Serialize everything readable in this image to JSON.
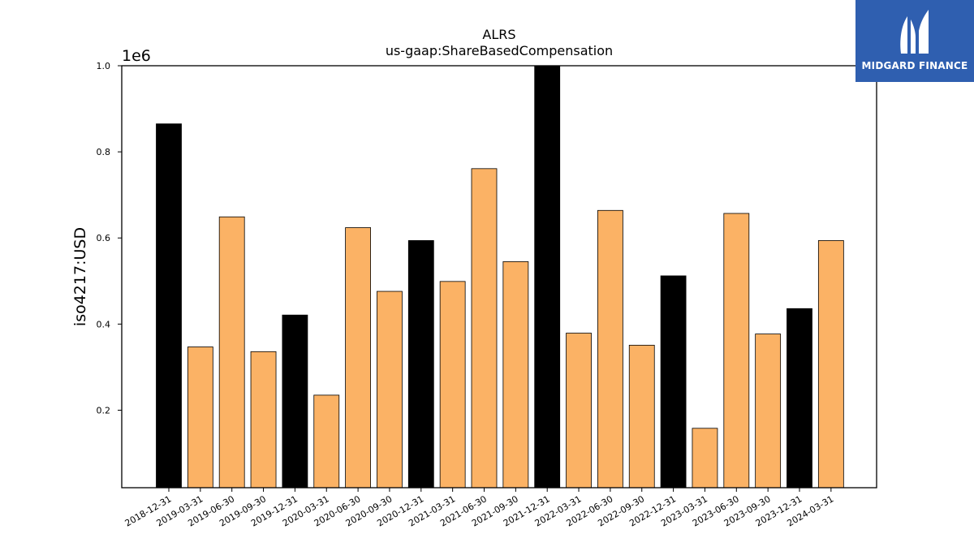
{
  "chart_data": {
    "type": "bar",
    "title": "ALRS",
    "subtitle": "us-gaap:ShareBasedCompensation",
    "xlabel": "",
    "ylabel": "iso4217:USD",
    "y_scale_label": "1e6",
    "ylim": [
      0.02,
      1.0
    ],
    "yticks": [
      0.2,
      0.4,
      0.6,
      0.8,
      1.0
    ],
    "ytick_labels": [
      "0.2",
      "0.4",
      "0.6",
      "0.8",
      "1.0"
    ],
    "grid": false,
    "categories": [
      "2018-12-31",
      "2019-03-31",
      "2019-06-30",
      "2019-09-30",
      "2019-12-31",
      "2020-03-31",
      "2020-06-30",
      "2020-09-30",
      "2020-12-31",
      "2021-03-31",
      "2021-06-30",
      "2021-09-30",
      "2021-12-31",
      "2022-03-31",
      "2022-06-30",
      "2022-09-30",
      "2022-12-31",
      "2023-03-31",
      "2023-06-30",
      "2023-09-30",
      "2023-12-31",
      "2024-03-31"
    ],
    "values": [
      0.865,
      0.347,
      0.649,
      0.336,
      0.421,
      0.235,
      0.624,
      0.476,
      0.594,
      0.499,
      0.761,
      0.545,
      1.005,
      0.379,
      0.664,
      0.351,
      0.512,
      0.158,
      0.657,
      0.377,
      0.436,
      0.594
    ],
    "bar_kinds": [
      "annual",
      "quarterly",
      "quarterly",
      "quarterly",
      "annual",
      "quarterly",
      "quarterly",
      "quarterly",
      "annual",
      "quarterly",
      "quarterly",
      "quarterly",
      "annual",
      "quarterly",
      "quarterly",
      "quarterly",
      "annual",
      "quarterly",
      "quarterly",
      "quarterly",
      "annual",
      "quarterly"
    ],
    "colors": {
      "annual": "#000000",
      "quarterly": "#fbb265",
      "edge": "#000000"
    }
  },
  "logo": {
    "text": "MIDGARD FINANCE",
    "background": "#2f5fb0"
  }
}
